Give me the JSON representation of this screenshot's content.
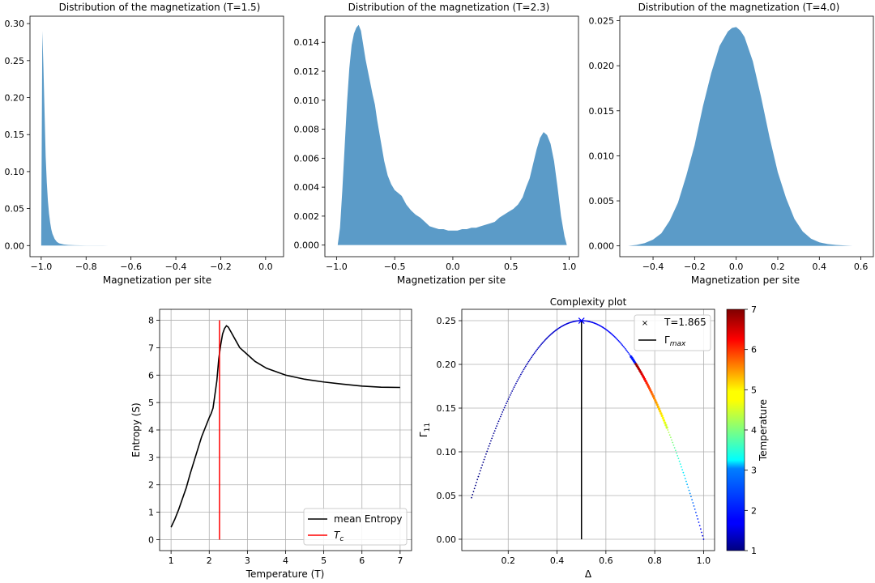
{
  "colors": {
    "hist": "#5b9bc8",
    "entropy": "#000000",
    "tc": "#ff0000",
    "complexity_marker": "#0000ff"
  },
  "chart_data": [
    {
      "type": "area",
      "title": "Distribution of the magnetization (T=1.5)",
      "xlabel": "Magnetization per site",
      "ylabel": "",
      "xlim": [
        -1.05,
        0.08
      ],
      "ylim": [
        -0.015,
        0.31
      ],
      "xticks": [
        -1.0,
        -0.8,
        -0.6,
        -0.4,
        -0.2,
        0.0
      ],
      "xtick_labels": [
        "−1.0",
        "−0.8",
        "−0.6",
        "−0.4",
        "−0.2",
        "0.0"
      ],
      "yticks": [
        0.0,
        0.05,
        0.1,
        0.15,
        0.2,
        0.25,
        0.3
      ],
      "ytick_labels": [
        "0.00",
        "0.05",
        "0.10",
        "0.15",
        "0.20",
        "0.25",
        "0.30"
      ],
      "x": [
        -1.0,
        -0.995,
        -0.99,
        -0.985,
        -0.98,
        -0.975,
        -0.97,
        -0.965,
        -0.96,
        -0.955,
        -0.95,
        -0.94,
        -0.93,
        -0.92,
        -0.9,
        -0.88,
        -0.85,
        -0.8,
        -0.7,
        -0.6,
        -0.55
      ],
      "y": [
        0.0,
        0.29,
        0.24,
        0.18,
        0.12,
        0.085,
        0.06,
        0.043,
        0.031,
        0.022,
        0.016,
        0.009,
        0.005,
        0.003,
        0.0015,
        0.0008,
        0.0004,
        0.0002,
        0.0001,
        5e-05,
        0.0
      ]
    },
    {
      "type": "area",
      "title": "Distribution of the magnetization (T=2.3)",
      "xlabel": "Magnetization per site",
      "ylabel": "",
      "xlim": [
        -1.1,
        1.08
      ],
      "ylim": [
        -0.0008,
        0.0158
      ],
      "xticks": [
        -1.0,
        -0.5,
        0.0,
        0.5,
        1.0
      ],
      "xtick_labels": [
        "−1.0",
        "−0.5",
        "0.0",
        "0.5",
        "1.0"
      ],
      "yticks": [
        0.0,
        0.002,
        0.004,
        0.006,
        0.008,
        0.01,
        0.012,
        0.014
      ],
      "ytick_labels": [
        "0.000",
        "0.002",
        "0.004",
        "0.006",
        "0.008",
        "0.010",
        "0.012",
        "0.014"
      ],
      "x": [
        -0.99,
        -0.97,
        -0.95,
        -0.93,
        -0.91,
        -0.89,
        -0.87,
        -0.85,
        -0.83,
        -0.81,
        -0.79,
        -0.77,
        -0.75,
        -0.73,
        -0.71,
        -0.69,
        -0.67,
        -0.65,
        -0.62,
        -0.59,
        -0.56,
        -0.53,
        -0.5,
        -0.47,
        -0.44,
        -0.4,
        -0.36,
        -0.32,
        -0.28,
        -0.24,
        -0.2,
        -0.16,
        -0.12,
        -0.08,
        -0.04,
        0.0,
        0.04,
        0.08,
        0.12,
        0.16,
        0.2,
        0.24,
        0.28,
        0.32,
        0.36,
        0.4,
        0.44,
        0.48,
        0.52,
        0.56,
        0.6,
        0.63,
        0.66,
        0.69,
        0.72,
        0.75,
        0.78,
        0.81,
        0.84,
        0.87,
        0.9,
        0.93,
        0.96,
        0.98
      ],
      "y": [
        0.0,
        0.0012,
        0.0038,
        0.0068,
        0.0098,
        0.0122,
        0.0138,
        0.0146,
        0.015,
        0.0152,
        0.0148,
        0.0138,
        0.0128,
        0.012,
        0.0112,
        0.0104,
        0.0097,
        0.0086,
        0.0072,
        0.0058,
        0.0048,
        0.0042,
        0.0038,
        0.0036,
        0.0034,
        0.0028,
        0.0024,
        0.0021,
        0.0019,
        0.0016,
        0.0013,
        0.0012,
        0.0011,
        0.0011,
        0.001,
        0.001,
        0.001,
        0.0011,
        0.0011,
        0.0012,
        0.0012,
        0.0013,
        0.0014,
        0.0015,
        0.0016,
        0.0019,
        0.0021,
        0.0023,
        0.0025,
        0.0028,
        0.0033,
        0.004,
        0.0046,
        0.0056,
        0.0066,
        0.0074,
        0.0078,
        0.0076,
        0.007,
        0.0058,
        0.004,
        0.002,
        0.0006,
        0.0
      ]
    },
    {
      "type": "area",
      "title": "Distribution of the magnetization (T=4.0)",
      "xlabel": "Magnetization per site",
      "ylabel": "",
      "xlim": [
        -0.56,
        0.66
      ],
      "ylim": [
        -0.0012,
        0.0255
      ],
      "xticks": [
        -0.4,
        -0.2,
        0.0,
        0.2,
        0.4,
        0.6
      ],
      "xtick_labels": [
        "−0.4",
        "−0.2",
        "0.0",
        "0.2",
        "0.4",
        "0.6"
      ],
      "yticks": [
        0.0,
        0.005,
        0.01,
        0.015,
        0.02,
        0.025
      ],
      "ytick_labels": [
        "0.000",
        "0.005",
        "0.010",
        "0.015",
        "0.020",
        "0.025"
      ],
      "x": [
        -0.52,
        -0.48,
        -0.44,
        -0.4,
        -0.36,
        -0.32,
        -0.28,
        -0.24,
        -0.2,
        -0.16,
        -0.12,
        -0.08,
        -0.04,
        -0.02,
        0.0,
        0.02,
        0.04,
        0.08,
        0.12,
        0.16,
        0.2,
        0.24,
        0.28,
        0.32,
        0.36,
        0.4,
        0.44,
        0.48,
        0.52,
        0.56
      ],
      "y": [
        0.0,
        0.0001,
        0.0003,
        0.0007,
        0.0014,
        0.0028,
        0.0048,
        0.0078,
        0.0112,
        0.0155,
        0.0192,
        0.0222,
        0.0238,
        0.0242,
        0.0243,
        0.0239,
        0.0232,
        0.0205,
        0.0165,
        0.0121,
        0.0082,
        0.0053,
        0.003,
        0.0016,
        0.0008,
        0.0004,
        0.0002,
        0.0001,
        5e-05,
        0.0
      ]
    },
    {
      "type": "line",
      "title": "",
      "xlabel": "Temperature (T)",
      "ylabel": "Entropy (S)",
      "xlim": [
        0.7,
        7.3
      ],
      "ylim": [
        -0.4,
        8.4
      ],
      "grid": true,
      "xticks": [
        1,
        2,
        3,
        4,
        5,
        6,
        7
      ],
      "xtick_labels": [
        "1",
        "2",
        "3",
        "4",
        "5",
        "6",
        "7"
      ],
      "yticks": [
        0,
        1,
        2,
        3,
        4,
        5,
        6,
        7,
        8
      ],
      "ytick_labels": [
        "0",
        "1",
        "2",
        "3",
        "4",
        "5",
        "6",
        "7",
        "8"
      ],
      "legend_position": "lower right",
      "series": [
        {
          "name": "mean Entropy",
          "x": [
            1.0,
            1.1,
            1.2,
            1.3,
            1.4,
            1.5,
            1.6,
            1.7,
            1.8,
            1.9,
            2.0,
            2.05,
            2.1,
            2.15,
            2.2,
            2.25,
            2.3,
            2.35,
            2.4,
            2.45,
            2.5,
            2.6,
            2.7,
            2.8,
            3.0,
            3.2,
            3.5,
            4.0,
            4.5,
            5.0,
            5.5,
            6.0,
            6.5,
            7.0
          ],
          "y": [
            0.45,
            0.75,
            1.1,
            1.5,
            1.9,
            2.4,
            2.85,
            3.3,
            3.75,
            4.1,
            4.45,
            4.6,
            4.8,
            5.3,
            5.8,
            6.6,
            7.1,
            7.5,
            7.7,
            7.8,
            7.75,
            7.5,
            7.25,
            7.0,
            6.75,
            6.5,
            6.25,
            6.0,
            5.85,
            5.75,
            5.67,
            5.6,
            5.56,
            5.55
          ]
        },
        {
          "name": "T_c",
          "legend_label": "Tc",
          "x": [
            2.269,
            2.269
          ],
          "y": [
            0.0,
            8.0
          ]
        }
      ]
    },
    {
      "type": "scatter",
      "title": "Complexity plot",
      "xlabel": "Δ",
      "ylabel": "Γ11",
      "xlim": [
        0.01,
        1.045
      ],
      "ylim": [
        -0.013,
        0.263
      ],
      "grid": true,
      "xticks": [
        0.2,
        0.4,
        0.6,
        0.8,
        1.0
      ],
      "xtick_labels": [
        "0.2",
        "0.4",
        "0.6",
        "0.8",
        "1.0"
      ],
      "yticks": [
        0.0,
        0.05,
        0.1,
        0.15,
        0.2,
        0.25
      ],
      "ytick_labels": [
        "0.00",
        "0.05",
        "0.10",
        "0.15",
        "0.20",
        "0.25"
      ],
      "legend_position": "upper right",
      "colorbar": {
        "label": "Temperature",
        "range": [
          1,
          7
        ],
        "ticks": [
          1,
          2,
          3,
          4,
          5,
          6,
          7
        ],
        "tick_labels": [
          "1",
          "2",
          "3",
          "4",
          "5",
          "6",
          "7"
        ],
        "colormap": "jet"
      },
      "marker": {
        "name": "T=1.865",
        "x": 0.5,
        "y": 0.25
      },
      "gamma_max_line": {
        "name": "Γmax",
        "legend_label": "Γmax",
        "x": 0.5,
        "y": [
          0.0,
          0.25
        ]
      },
      "series": [
        {
          "name": "points",
          "delta_start": 0.05,
          "delta_end": 1.0,
          "relation": "4*d*(1-d)",
          "T_range": [
            1,
            7
          ]
        }
      ]
    }
  ]
}
